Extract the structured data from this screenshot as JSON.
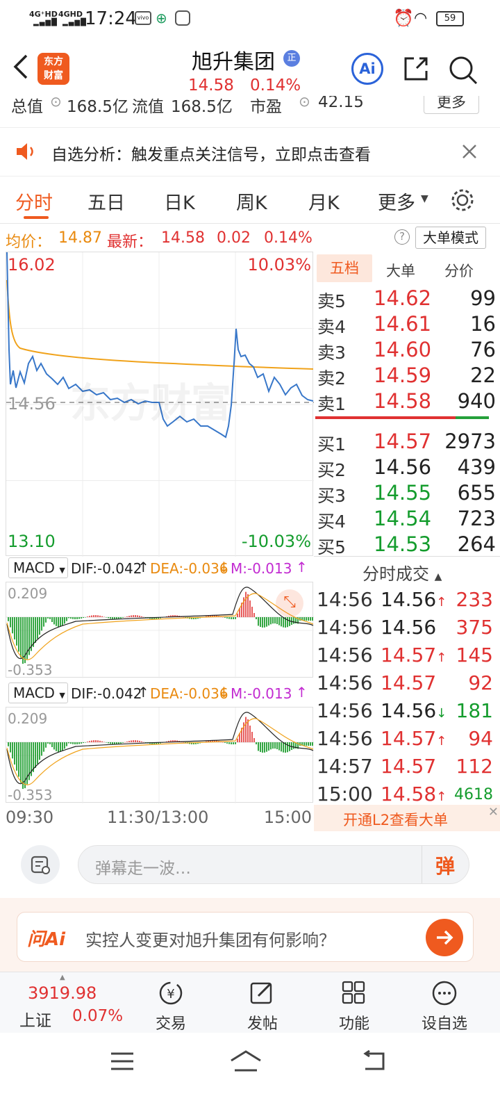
{
  "status": {
    "network1": "4G⁺HD",
    "network2": "4GHD",
    "time": "17:24",
    "battery": "59"
  },
  "header": {
    "logo_line1": "东方",
    "logo_line2": "财富",
    "title": "旭升集团",
    "badge": "正",
    "price": "14.58",
    "change_pct": "0.14%",
    "ai_label": "Ai"
  },
  "info": {
    "l1": "总值",
    "v1": "168.5亿",
    "l2": "流值",
    "v2": "168.5亿",
    "l3": "市盈",
    "v3": "42.15",
    "more": "更多"
  },
  "banner": {
    "text": "自选分析：触发重点关注信号，立即点击查看"
  },
  "tabs": [
    "分时",
    "五日",
    "日K",
    "周K",
    "月K",
    "更多"
  ],
  "avg": {
    "avg_label": "均价：",
    "avg_value": "14.87",
    "latest_label": "最新：",
    "latest_value": "14.58",
    "chg": "0.02",
    "pct": "0.14%",
    "mode": "大单模式",
    "help": "?"
  },
  "chart": {
    "high": "16.02",
    "high_pct": "10.03%",
    "low": "13.10",
    "low_pct": "-10.03%",
    "prev_close": "14.56",
    "watermark": "东方财富",
    "time_labels": [
      "09:30",
      "11:30/13:00",
      "15:00"
    ]
  },
  "macd": {
    "name": "MACD",
    "dif": "DIF:-0.042",
    "dea": "DEA:-0.036",
    "m": "M:-0.013",
    "top": "0.209",
    "bottom": "-0.353"
  },
  "orderbook": {
    "tabs": [
      "五档",
      "大单",
      "分价"
    ],
    "sells": [
      {
        "label": "卖5",
        "price": "14.62",
        "vol": "99"
      },
      {
        "label": "卖4",
        "price": "14.61",
        "vol": "16"
      },
      {
        "label": "卖3",
        "price": "14.60",
        "vol": "76"
      },
      {
        "label": "卖2",
        "price": "14.59",
        "vol": "22"
      },
      {
        "label": "卖1",
        "price": "14.58",
        "vol": "940"
      }
    ],
    "buys": [
      {
        "label": "买1",
        "price": "14.57",
        "vol": "2973"
      },
      {
        "label": "买2",
        "price": "14.56",
        "vol": "439"
      },
      {
        "label": "买3",
        "price": "14.55",
        "vol": "655"
      },
      {
        "label": "买4",
        "price": "14.54",
        "vol": "723"
      },
      {
        "label": "买5",
        "price": "14.53",
        "vol": "264"
      }
    ]
  },
  "trades": {
    "title": "分时成交",
    "rows": [
      {
        "time": "14:56",
        "price": "14.56",
        "arrow": "↑",
        "vol": "233"
      },
      {
        "time": "14:56",
        "price": "14.56",
        "arrow": "",
        "vol": "375"
      },
      {
        "time": "14:56",
        "price": "14.57",
        "arrow": "↑",
        "vol": "145"
      },
      {
        "time": "14:56",
        "price": "14.57",
        "arrow": "",
        "vol": "92"
      },
      {
        "time": "14:56",
        "price": "14.56",
        "arrow": "↓",
        "vol": "181"
      },
      {
        "time": "14:56",
        "price": "14.57",
        "arrow": "↑",
        "vol": "94"
      },
      {
        "time": "14:57",
        "price": "14.57",
        "arrow": "",
        "vol": "112"
      },
      {
        "time": "15:00",
        "price": "14.58",
        "arrow": "↑",
        "vol": "4618"
      }
    ],
    "l2": "开通L2查看大单"
  },
  "comment": {
    "placeholder": "弹幕走一波…",
    "danmu": "弹"
  },
  "askai": {
    "logo": "问Ai",
    "question": "实控人变更对旭升集团有何影响？"
  },
  "bottom": {
    "index_value": "3919.98",
    "index_name": "上证",
    "index_pct": "0.07%",
    "trade": "交易",
    "post": "发帖",
    "func": "功能",
    "watch": "设自选"
  }
}
